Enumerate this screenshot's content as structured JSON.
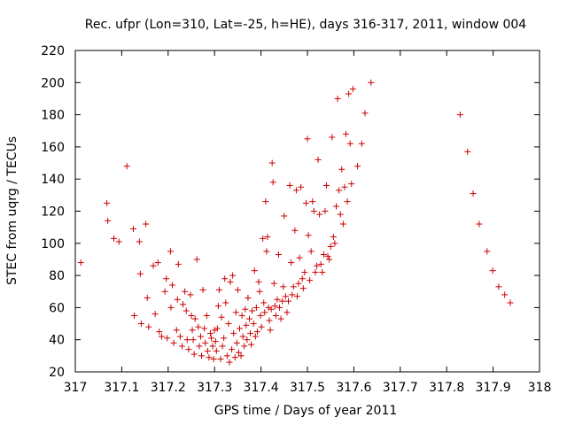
{
  "chart_data": {
    "type": "scatter",
    "title": "Rec. ufpr (Lon=310, Lat=-25, h=HE), days 316-317, 2011, window 004",
    "xlabel": "GPS time / Days of year 2011",
    "ylabel": "STEC from uqrg / TECUs",
    "xlim": [
      317,
      318
    ],
    "ylim": [
      20,
      220
    ],
    "xticks": [
      317,
      317.1,
      317.2,
      317.3,
      317.4,
      317.5,
      317.6,
      317.7,
      317.8,
      317.9,
      318
    ],
    "xtick_labels": [
      "317",
      "317.1",
      "317.2",
      "317.3",
      "317.4",
      "317.5",
      "317.6",
      "317.7",
      "317.8",
      "317.9",
      "318"
    ],
    "yticks": [
      20,
      40,
      60,
      80,
      100,
      120,
      140,
      160,
      180,
      200,
      220
    ],
    "ytick_labels": [
      "20",
      "40",
      "60",
      "80",
      "100",
      "120",
      "140",
      "160",
      "180",
      "200",
      "220"
    ],
    "grid": false,
    "marker": "plus",
    "marker_color": "#cc0000",
    "series": [
      {
        "name": "STEC",
        "points": [
          [
            317.012,
            88
          ],
          [
            317.068,
            125
          ],
          [
            317.07,
            114
          ],
          [
            317.083,
            103
          ],
          [
            317.094,
            101
          ],
          [
            317.111,
            148
          ],
          [
            317.125,
            109
          ],
          [
            317.127,
            55
          ],
          [
            317.138,
            101
          ],
          [
            317.14,
            81
          ],
          [
            317.142,
            50
          ],
          [
            317.152,
            112
          ],
          [
            317.155,
            66
          ],
          [
            317.158,
            48
          ],
          [
            317.168,
            86
          ],
          [
            317.172,
            56
          ],
          [
            317.178,
            88
          ],
          [
            317.181,
            45
          ],
          [
            317.186,
            42
          ],
          [
            317.193,
            70
          ],
          [
            317.196,
            78
          ],
          [
            317.198,
            41
          ],
          [
            317.205,
            95
          ],
          [
            317.206,
            60
          ],
          [
            317.209,
            74
          ],
          [
            317.212,
            38
          ],
          [
            317.218,
            46
          ],
          [
            317.22,
            65
          ],
          [
            317.222,
            87
          ],
          [
            317.226,
            42
          ],
          [
            317.23,
            36
          ],
          [
            317.232,
            62
          ],
          [
            317.236,
            70
          ],
          [
            317.239,
            58
          ],
          [
            317.241,
            40
          ],
          [
            317.244,
            34
          ],
          [
            317.248,
            68
          ],
          [
            317.25,
            55
          ],
          [
            317.252,
            46
          ],
          [
            317.254,
            40
          ],
          [
            317.256,
            31
          ],
          [
            317.258,
            53
          ],
          [
            317.262,
            90
          ],
          [
            317.265,
            48
          ],
          [
            317.267,
            36
          ],
          [
            317.27,
            42
          ],
          [
            317.272,
            30
          ],
          [
            317.275,
            71
          ],
          [
            317.278,
            47
          ],
          [
            317.28,
            38
          ],
          [
            317.283,
            55
          ],
          [
            317.285,
            33
          ],
          [
            317.288,
            29
          ],
          [
            317.291,
            44
          ],
          [
            317.293,
            41
          ],
          [
            317.296,
            36
          ],
          [
            317.298,
            28
          ],
          [
            317.3,
            46
          ],
          [
            317.302,
            39
          ],
          [
            317.304,
            33
          ],
          [
            317.306,
            47
          ],
          [
            317.308,
            61
          ],
          [
            317.31,
            71
          ],
          [
            317.313,
            28
          ],
          [
            317.315,
            54
          ],
          [
            317.317,
            36
          ],
          [
            317.32,
            41
          ],
          [
            317.322,
            78
          ],
          [
            317.324,
            63
          ],
          [
            317.327,
            30
          ],
          [
            317.33,
            50
          ],
          [
            317.332,
            26
          ],
          [
            317.334,
            76
          ],
          [
            317.337,
            34
          ],
          [
            317.339,
            80
          ],
          [
            317.341,
            44
          ],
          [
            317.344,
            29
          ],
          [
            317.346,
            57
          ],
          [
            317.348,
            38
          ],
          [
            317.35,
            71
          ],
          [
            317.352,
            32
          ],
          [
            317.354,
            47
          ],
          [
            317.357,
            30
          ],
          [
            317.359,
            55
          ],
          [
            317.361,
            42
          ],
          [
            317.364,
            36
          ],
          [
            317.366,
            59
          ],
          [
            317.368,
            49
          ],
          [
            317.37,
            40
          ],
          [
            317.372,
            66
          ],
          [
            317.375,
            53
          ],
          [
            317.377,
            44
          ],
          [
            317.379,
            37
          ],
          [
            317.381,
            58
          ],
          [
            317.384,
            50
          ],
          [
            317.386,
            83
          ],
          [
            317.388,
            42
          ],
          [
            317.39,
            60
          ],
          [
            317.392,
            45
          ],
          [
            317.395,
            76
          ],
          [
            317.397,
            70
          ],
          [
            317.399,
            55
          ],
          [
            317.401,
            48
          ],
          [
            317.404,
            103
          ],
          [
            317.406,
            63
          ],
          [
            317.408,
            57
          ],
          [
            317.41,
            126
          ],
          [
            317.412,
            95
          ],
          [
            317.414,
            104
          ],
          [
            317.416,
            60
          ],
          [
            317.418,
            52
          ],
          [
            317.42,
            46
          ],
          [
            317.422,
            59
          ],
          [
            317.424,
            150
          ],
          [
            317.426,
            138
          ],
          [
            317.428,
            75
          ],
          [
            317.43,
            61
          ],
          [
            317.432,
            55
          ],
          [
            317.435,
            65
          ],
          [
            317.438,
            93
          ],
          [
            317.44,
            60
          ],
          [
            317.443,
            53
          ],
          [
            317.446,
            64
          ],
          [
            317.448,
            73
          ],
          [
            317.45,
            117
          ],
          [
            317.453,
            67
          ],
          [
            317.456,
            57
          ],
          [
            317.459,
            64
          ],
          [
            317.462,
            136
          ],
          [
            317.465,
            88
          ],
          [
            317.467,
            68
          ],
          [
            317.47,
            73
          ],
          [
            317.473,
            108
          ],
          [
            317.476,
            133
          ],
          [
            317.478,
            67
          ],
          [
            317.481,
            75
          ],
          [
            317.483,
            91
          ],
          [
            317.486,
            135
          ],
          [
            317.489,
            78
          ],
          [
            317.491,
            72
          ],
          [
            317.494,
            82
          ],
          [
            317.497,
            125
          ],
          [
            317.5,
            165
          ],
          [
            317.502,
            105
          ],
          [
            317.505,
            77
          ],
          [
            317.508,
            95
          ],
          [
            317.511,
            126
          ],
          [
            317.514,
            120
          ],
          [
            317.517,
            82
          ],
          [
            317.52,
            86
          ],
          [
            317.523,
            152
          ],
          [
            317.526,
            118
          ],
          [
            317.529,
            87
          ],
          [
            317.532,
            82
          ],
          [
            317.535,
            93
          ],
          [
            317.538,
            120
          ],
          [
            317.541,
            136
          ],
          [
            317.544,
            92
          ],
          [
            317.547,
            90
          ],
          [
            317.55,
            98
          ],
          [
            317.553,
            166
          ],
          [
            317.556,
            104
          ],
          [
            317.559,
            100
          ],
          [
            317.562,
            123
          ],
          [
            317.565,
            190
          ],
          [
            317.568,
            133
          ],
          [
            317.571,
            118
          ],
          [
            317.574,
            146
          ],
          [
            317.577,
            112
          ],
          [
            317.58,
            135
          ],
          [
            317.583,
            168
          ],
          [
            317.586,
            126
          ],
          [
            317.589,
            193
          ],
          [
            317.592,
            162
          ],
          [
            317.595,
            137
          ],
          [
            317.598,
            196
          ],
          [
            317.608,
            148
          ],
          [
            317.617,
            162
          ],
          [
            317.624,
            181
          ],
          [
            317.637,
            200
          ],
          [
            317.829,
            180
          ],
          [
            317.845,
            157
          ],
          [
            317.857,
            131
          ],
          [
            317.87,
            112
          ],
          [
            317.887,
            95
          ],
          [
            317.899,
            83
          ],
          [
            317.912,
            73
          ],
          [
            317.925,
            68
          ],
          [
            317.937,
            63
          ]
        ]
      }
    ]
  }
}
